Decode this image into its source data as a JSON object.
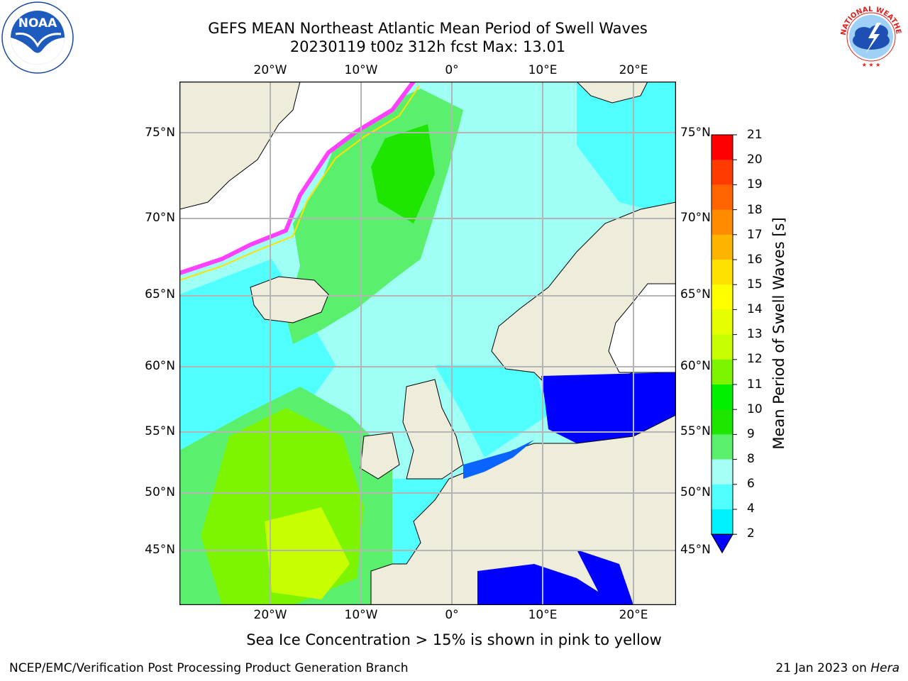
{
  "header": {
    "title_line1": "GEFS MEAN Northeast Atlantic Mean Period of Swell Waves",
    "title_line2": "20230119 t00z 312h fcst   Max: 13.01"
  },
  "map": {
    "lon_labels_top": [
      "20°W",
      "10°W",
      "0°",
      "10°E",
      "20°E"
    ],
    "lon_labels_bottom": [
      "20°W",
      "10°W",
      "0°",
      "10°E",
      "20°E"
    ],
    "lat_labels_left": [
      "75°N",
      "70°N",
      "65°N",
      "60°N",
      "55°N",
      "50°N",
      "45°N"
    ],
    "lat_labels_right": [
      "75°N",
      "70°N",
      "65°N",
      "60°N",
      "55°N",
      "50°N",
      "45°N"
    ],
    "colors": {
      "land": "#eeeddc",
      "ocean_mid": "#9ffff5",
      "grid": "#b4b4b4"
    }
  },
  "colorbar": {
    "label": "Mean Period of Swell Waves [s]",
    "ticks": [
      "21",
      "20",
      "19",
      "18",
      "17",
      "16",
      "15",
      "14",
      "13",
      "12",
      "11",
      "10",
      "9",
      "8",
      "6",
      "4",
      "2"
    ],
    "colors": [
      "#ff0000",
      "#ff3c00",
      "#ff6400",
      "#ff8c00",
      "#ffb400",
      "#ffe100",
      "#ffff00",
      "#e6ff00",
      "#c8ff00",
      "#7ef500",
      "#00f000",
      "#1ee600",
      "#5af06e",
      "#a5fff5",
      "#50ffff",
      "#00f2ff",
      "#0a64ff"
    ],
    "extend_color": "#0000ff"
  },
  "caption": "Sea Ice Concentration > 15% is shown in pink to yellow",
  "footer": {
    "left": "NCEP/EMC/Verification Post Processing Product Generation Branch",
    "right_prefix": "21 Jan 2023 on ",
    "right_host": "Hera"
  },
  "logos": {
    "noaa_text": "NOAA",
    "nws_text": "NATIONAL WEATHER SERVICE"
  }
}
